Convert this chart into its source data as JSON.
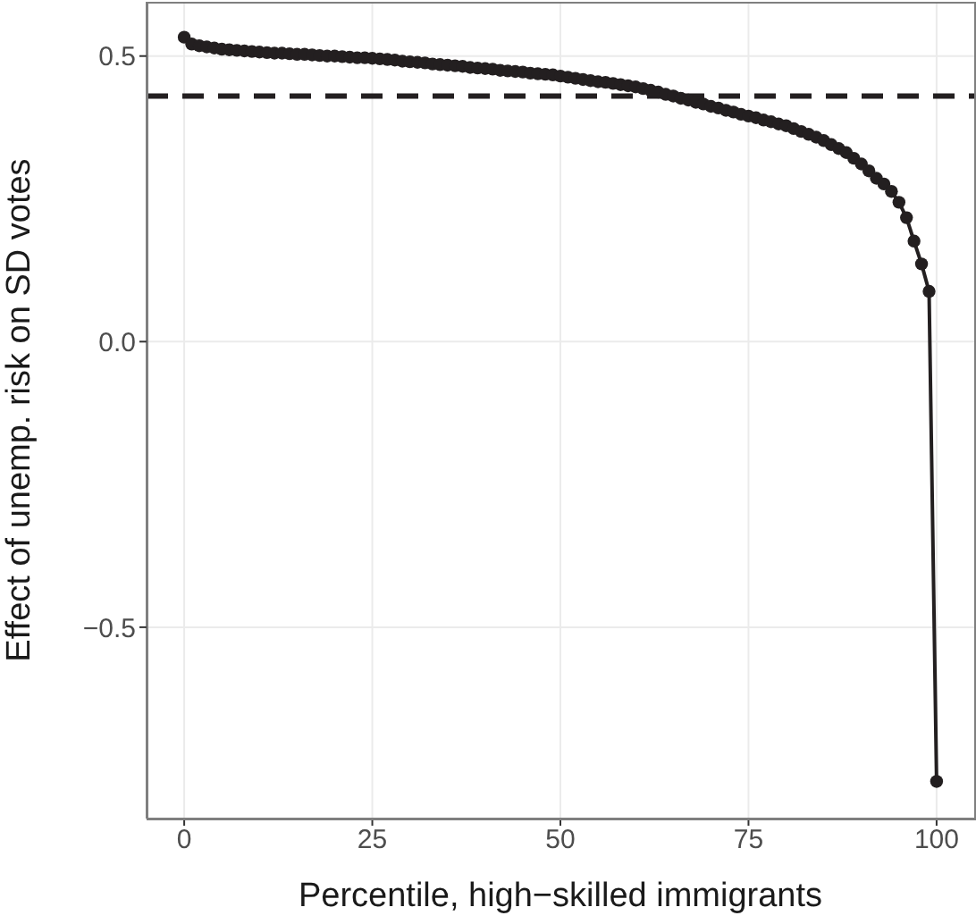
{
  "chart_data": {
    "type": "line",
    "xlabel": "Percentile, high−skilled immigrants",
    "ylabel": "Effect of unemp. risk on SD votes",
    "x": [
      0,
      1,
      2,
      3,
      4,
      5,
      6,
      7,
      8,
      9,
      10,
      11,
      12,
      13,
      14,
      15,
      16,
      17,
      18,
      19,
      20,
      21,
      22,
      23,
      24,
      25,
      26,
      27,
      28,
      29,
      30,
      31,
      32,
      33,
      34,
      35,
      36,
      37,
      38,
      39,
      40,
      41,
      42,
      43,
      44,
      45,
      46,
      47,
      48,
      49,
      50,
      51,
      52,
      53,
      54,
      55,
      56,
      57,
      58,
      59,
      60,
      61,
      62,
      63,
      64,
      65,
      66,
      67,
      68,
      69,
      70,
      71,
      72,
      73,
      74,
      75,
      76,
      77,
      78,
      79,
      80,
      81,
      82,
      83,
      84,
      85,
      86,
      87,
      88,
      89,
      90,
      91,
      92,
      93,
      94,
      95,
      96,
      97,
      98,
      99,
      100
    ],
    "values": [
      0.533,
      0.521,
      0.518,
      0.516,
      0.514,
      0.512,
      0.511,
      0.51,
      0.509,
      0.508,
      0.507,
      0.506,
      0.505,
      0.505,
      0.504,
      0.503,
      0.503,
      0.502,
      0.501,
      0.5,
      0.5,
      0.499,
      0.498,
      0.497,
      0.497,
      0.496,
      0.495,
      0.494,
      0.493,
      0.491,
      0.49,
      0.489,
      0.488,
      0.486,
      0.485,
      0.484,
      0.483,
      0.482,
      0.48,
      0.479,
      0.478,
      0.477,
      0.475,
      0.474,
      0.473,
      0.472,
      0.47,
      0.469,
      0.468,
      0.467,
      0.465,
      0.463,
      0.461,
      0.459,
      0.457,
      0.455,
      0.454,
      0.452,
      0.45,
      0.448,
      0.446,
      0.443,
      0.44,
      0.437,
      0.433,
      0.43,
      0.426,
      0.423,
      0.419,
      0.416,
      0.412,
      0.409,
      0.405,
      0.402,
      0.398,
      0.395,
      0.392,
      0.388,
      0.385,
      0.381,
      0.378,
      0.373,
      0.368,
      0.363,
      0.358,
      0.352,
      0.345,
      0.338,
      0.331,
      0.321,
      0.311,
      0.299,
      0.286,
      0.276,
      0.263,
      0.244,
      0.217,
      0.176,
      0.136,
      0.088,
      -0.77
    ],
    "color": "#231f20",
    "xlim": [
      -5,
      105
    ],
    "ylim": [
      -0.835,
      0.595
    ],
    "xticks": [
      0,
      25,
      50,
      75,
      100
    ],
    "yticks": [
      {
        "value": -0.5,
        "label": "−0.5"
      },
      {
        "value": 0,
        "label": "0.0"
      },
      {
        "value": 0.5,
        "label": "0.5"
      }
    ],
    "grid": true,
    "marker": "circle",
    "line_style": "solid",
    "ref_lines": [
      {
        "axis": "y",
        "value": 0.43,
        "line_style": "dashed",
        "color": "#231f20"
      }
    ]
  }
}
